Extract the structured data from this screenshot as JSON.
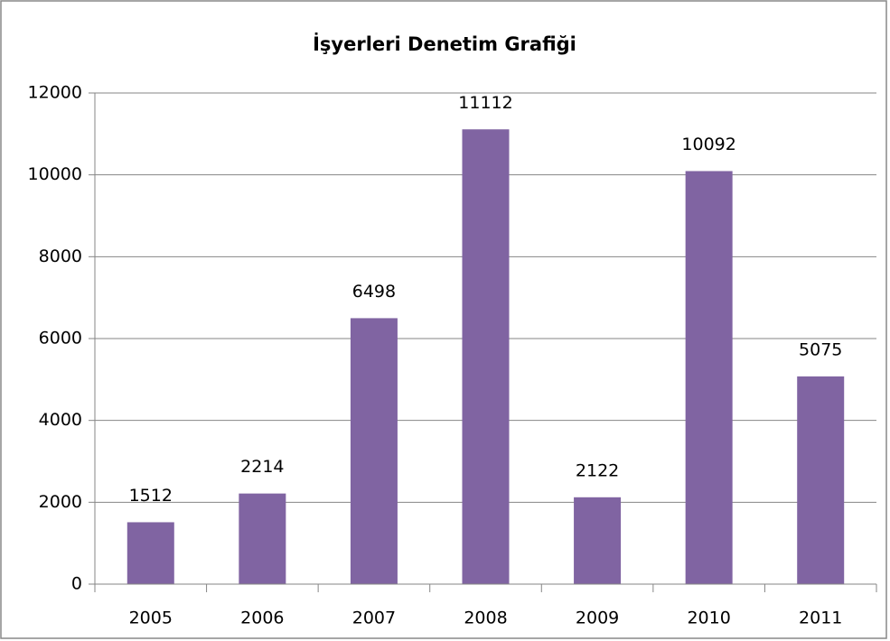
{
  "chart_data": {
    "type": "bar",
    "title": "İşyerleri Denetim Grafiği",
    "categories": [
      "2005",
      "2006",
      "2007",
      "2008",
      "2009",
      "2010",
      "2011"
    ],
    "values": [
      1512,
      2214,
      6498,
      11112,
      2122,
      10092,
      5075
    ],
    "color": "#8064a2",
    "ylim": [
      0,
      12000
    ],
    "yticks": [
      0,
      2000,
      4000,
      6000,
      8000,
      10000,
      12000
    ],
    "grid": true
  }
}
